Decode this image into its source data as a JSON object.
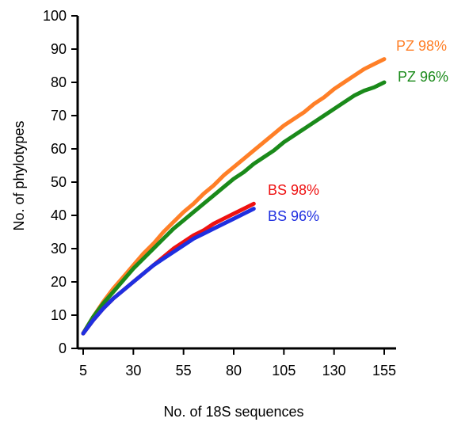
{
  "chart_data": {
    "type": "line",
    "title": "",
    "xlabel": "No. of 18S sequences",
    "ylabel": "No. of phylotypes",
    "xlim": [
      5,
      160
    ],
    "ylim": [
      0,
      100
    ],
    "xticks": [
      5,
      30,
      55,
      80,
      105,
      130,
      155
    ],
    "yticks": [
      0,
      10,
      20,
      30,
      40,
      50,
      60,
      70,
      80,
      90,
      100
    ],
    "grid": false,
    "legend": "inline labels at line ends",
    "series": [
      {
        "name": "PZ 98%",
        "color": "#FF7F27",
        "x": [
          5,
          10,
          15,
          20,
          25,
          30,
          35,
          40,
          45,
          50,
          55,
          60,
          65,
          70,
          75,
          80,
          85,
          90,
          95,
          100,
          105,
          110,
          115,
          120,
          125,
          130,
          135,
          140,
          145,
          150,
          155
        ],
        "y": [
          4.5,
          9.5,
          14,
          18,
          21.5,
          25,
          28.5,
          31.5,
          35,
          38,
          41,
          43.5,
          46.5,
          49,
          52,
          54.5,
          57,
          59.5,
          62,
          64.5,
          67,
          69,
          71,
          73.5,
          75.5,
          78,
          80,
          82,
          84,
          85.5,
          87
        ]
      },
      {
        "name": "PZ 96%",
        "color": "#1A8A1A",
        "x": [
          5,
          10,
          15,
          20,
          25,
          30,
          35,
          40,
          45,
          50,
          55,
          60,
          65,
          70,
          75,
          80,
          85,
          90,
          95,
          100,
          105,
          110,
          115,
          120,
          125,
          130,
          135,
          140,
          145,
          150,
          155
        ],
        "y": [
          4.5,
          9.5,
          13.5,
          17,
          20.5,
          24,
          27,
          30,
          33,
          36,
          38.5,
          41,
          43.5,
          46,
          48.5,
          51,
          53,
          55.5,
          57.5,
          59.5,
          62,
          64,
          66,
          68,
          70,
          72,
          74,
          76,
          77.5,
          78.5,
          80
        ]
      },
      {
        "name": "BS 98%",
        "color": "#EE1111",
        "x": [
          5,
          10,
          15,
          20,
          25,
          30,
          35,
          40,
          45,
          50,
          55,
          60,
          65,
          70,
          75,
          80,
          85,
          90
        ],
        "y": [
          4.5,
          8.5,
          12,
          15,
          17.5,
          20,
          22.5,
          25,
          27.5,
          30,
          32,
          34,
          35.5,
          37.5,
          39,
          40.5,
          42,
          43.5
        ]
      },
      {
        "name": "BS 96%",
        "color": "#1F2FE0",
        "x": [
          5,
          10,
          15,
          20,
          25,
          30,
          35,
          40,
          45,
          50,
          55,
          60,
          65,
          70,
          75,
          80,
          85,
          90
        ],
        "y": [
          4.5,
          8.5,
          12,
          15,
          17.5,
          20,
          22.5,
          25,
          27,
          29,
          31,
          33,
          34.5,
          36,
          37.5,
          39,
          40.5,
          42
        ]
      }
    ]
  }
}
